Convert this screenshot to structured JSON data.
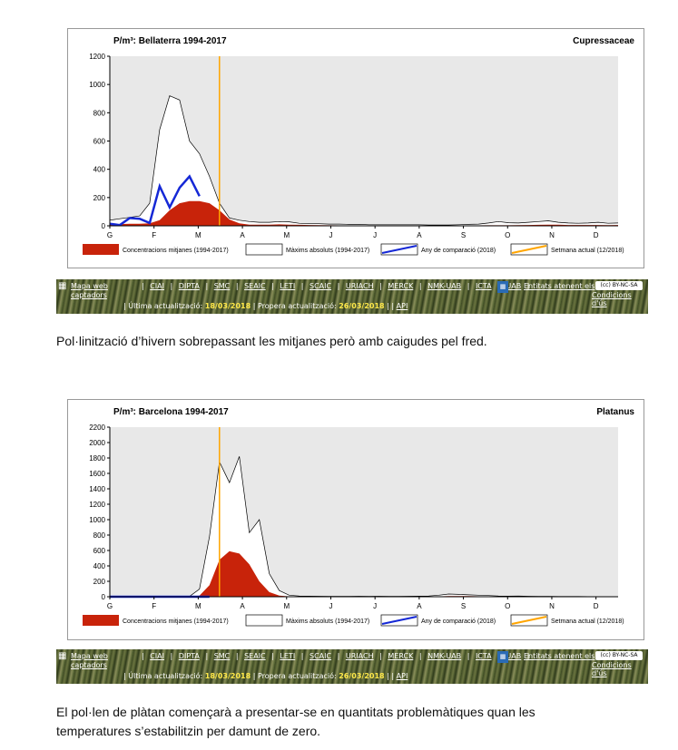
{
  "charts": [
    {
      "title": "P/m³: Bellaterra 1994-2017",
      "taxon": "Cupressaceae",
      "legend": {
        "mean": "Concentracions mitjanes (1994-2017)",
        "max": "Màxims absoluts (1994-2017)",
        "comparison": "Any de comparació (2018)",
        "current": "Setmana actual (12/2018)"
      },
      "caption": "Pol·linització d’hivern sobrepassant les mitjanes però amb caigudes pel fred."
    },
    {
      "title": "P/m³: Barcelona 1994-2017",
      "taxon": "Platanus",
      "legend": {
        "mean": "Concentracions mitjanes (1994-2017)",
        "max": "Màxims absoluts (1994-2017)",
        "comparison": "Any de comparació (2018)",
        "current": "Setmana actual (12/2018)"
      },
      "caption": "El pol·len de plàtan començarà a presentar-se en quantitats problemàtiques quan les temperatures s’estabilitzin per damunt de zero."
    }
  ],
  "colors": {
    "mean": "#c8230a",
    "max": "#ffffff",
    "comparison": "#1528d6",
    "current": "#ffa500",
    "plot_bg": "#e8e8e8"
  },
  "chart_data": [
    {
      "type": "area",
      "title": "P/m³: Bellaterra 1994-2017",
      "ylim": [
        0,
        1200
      ],
      "yticks": [
        0,
        200,
        400,
        600,
        800,
        1000,
        1200
      ],
      "xticks": [
        "G",
        "F",
        "M",
        "A",
        "M",
        "J",
        "J",
        "A",
        "S",
        "O",
        "N",
        "D"
      ],
      "week_range": [
        1,
        52
      ],
      "current_week": 12,
      "series": [
        {
          "name": "Concentracions mitjanes (1994-2017)",
          "x": [
            1,
            2,
            3,
            4,
            5,
            6,
            7,
            8,
            9,
            10,
            11,
            12,
            13,
            14,
            15,
            16,
            17,
            18,
            19,
            20,
            21,
            22,
            23,
            24,
            25,
            26,
            27,
            28,
            29,
            30,
            31,
            32,
            33,
            34,
            35,
            36,
            37,
            38,
            39,
            40,
            41,
            42,
            43,
            44,
            45,
            46,
            47,
            48,
            49,
            50,
            51,
            52
          ],
          "values": [
            10,
            12,
            15,
            15,
            18,
            40,
            110,
            160,
            175,
            175,
            160,
            110,
            45,
            18,
            8,
            8,
            8,
            10,
            8,
            7,
            6,
            5,
            4,
            3,
            2,
            2,
            2,
            2,
            2,
            2,
            2,
            2,
            2,
            2,
            2,
            2,
            2,
            3,
            4,
            4,
            4,
            5,
            6,
            7,
            8,
            8,
            6,
            6,
            6,
            6,
            5,
            6
          ]
        },
        {
          "name": "Màxims absoluts (1994-2017)",
          "x": [
            1,
            2,
            3,
            4,
            5,
            6,
            7,
            8,
            9,
            10,
            11,
            12,
            13,
            14,
            15,
            16,
            17,
            18,
            19,
            20,
            21,
            22,
            23,
            24,
            25,
            26,
            27,
            28,
            29,
            30,
            31,
            32,
            33,
            34,
            35,
            36,
            37,
            38,
            39,
            40,
            41,
            42,
            43,
            44,
            45,
            46,
            47,
            48,
            49,
            50,
            51,
            52
          ],
          "values": [
            40,
            50,
            60,
            70,
            160,
            680,
            920,
            890,
            600,
            510,
            350,
            160,
            55,
            40,
            30,
            25,
            25,
            30,
            28,
            18,
            15,
            15,
            12,
            12,
            10,
            10,
            8,
            8,
            8,
            8,
            8,
            8,
            6,
            6,
            6,
            8,
            10,
            12,
            20,
            30,
            22,
            20,
            25,
            30,
            35,
            25,
            20,
            18,
            20,
            25,
            18,
            20
          ]
        },
        {
          "name": "Any de comparació (2018)",
          "x": [
            1,
            2,
            3,
            4,
            5,
            6,
            7,
            8,
            9,
            10
          ],
          "values": [
            15,
            5,
            55,
            50,
            20,
            280,
            130,
            270,
            350,
            210
          ]
        }
      ]
    },
    {
      "type": "area",
      "title": "P/m³: Barcelona 1994-2017",
      "ylim": [
        0,
        2200
      ],
      "yticks": [
        0,
        200,
        400,
        600,
        800,
        1000,
        1200,
        1400,
        1600,
        1800,
        2000,
        2200
      ],
      "xticks": [
        "G",
        "F",
        "M",
        "A",
        "M",
        "J",
        "J",
        "A",
        "S",
        "O",
        "N",
        "D"
      ],
      "week_range": [
        1,
        52
      ],
      "current_week": 12,
      "series": [
        {
          "name": "Concentracions mitjanes (1994-2017)",
          "x": [
            1,
            2,
            3,
            4,
            5,
            6,
            7,
            8,
            9,
            10,
            11,
            12,
            13,
            14,
            15,
            16,
            17,
            18,
            19,
            20,
            21,
            22,
            23,
            24,
            25,
            26,
            27,
            28,
            29,
            30,
            31,
            32,
            33,
            34,
            35,
            36,
            37,
            38,
            39,
            40,
            41,
            42,
            43,
            44,
            45,
            46,
            47,
            48,
            49,
            50,
            51,
            52
          ],
          "values": [
            0,
            0,
            0,
            0,
            0,
            0,
            0,
            0,
            2,
            15,
            150,
            480,
            590,
            560,
            420,
            200,
            60,
            15,
            5,
            3,
            2,
            2,
            2,
            2,
            2,
            2,
            2,
            2,
            2,
            2,
            2,
            3,
            3,
            5,
            8,
            10,
            8,
            6,
            5,
            5,
            3,
            2,
            2,
            2,
            2,
            2,
            2,
            1,
            1,
            1,
            1,
            1
          ]
        },
        {
          "name": "Màxims absoluts (1994-2017)",
          "x": [
            1,
            2,
            3,
            4,
            5,
            6,
            7,
            8,
            9,
            10,
            11,
            12,
            13,
            14,
            15,
            16,
            17,
            18,
            19,
            20,
            21,
            22,
            23,
            24,
            25,
            26,
            27,
            28,
            29,
            30,
            31,
            32,
            33,
            34,
            35,
            36,
            37,
            38,
            39,
            40,
            41,
            42,
            43,
            44,
            45,
            46,
            47,
            48,
            49,
            50,
            51,
            52
          ],
          "values": [
            0,
            0,
            0,
            0,
            0,
            0,
            0,
            0,
            5,
            100,
            780,
            1750,
            1480,
            1820,
            830,
            1000,
            300,
            80,
            20,
            10,
            8,
            6,
            5,
            5,
            5,
            6,
            5,
            6,
            5,
            5,
            6,
            8,
            10,
            20,
            35,
            30,
            25,
            20,
            15,
            10,
            8,
            10,
            6,
            5,
            5,
            4,
            3,
            3,
            2,
            2,
            2,
            2
          ]
        },
        {
          "name": "Any de comparació (2018)",
          "x": [
            1,
            2,
            3,
            4,
            5,
            6,
            7,
            8,
            9,
            10,
            11
          ],
          "values": [
            0,
            0,
            0,
            0,
            0,
            0,
            0,
            0,
            0,
            0,
            0
          ]
        }
      ]
    }
  ],
  "nav": {
    "map": "Mapa web",
    "captadors": "captadors",
    "links": [
      "CIAI",
      "DIPTA",
      "SMC",
      "SEAIC",
      "LETI",
      "SCAIC",
      "URIACH",
      "MERCK",
      "NMK-UAB",
      "ICTA",
      "UAB"
    ],
    "entitats": "Entitats atenent els",
    "cc": "(cc) BY-NC-SA",
    "condicions": "Condicions d'ús",
    "ultima_label": "Última actualització:",
    "ultima_value": "18/03/2018",
    "propera_label": "Propera actualització:",
    "propera_value": "26/03/2018",
    "api": "API"
  }
}
